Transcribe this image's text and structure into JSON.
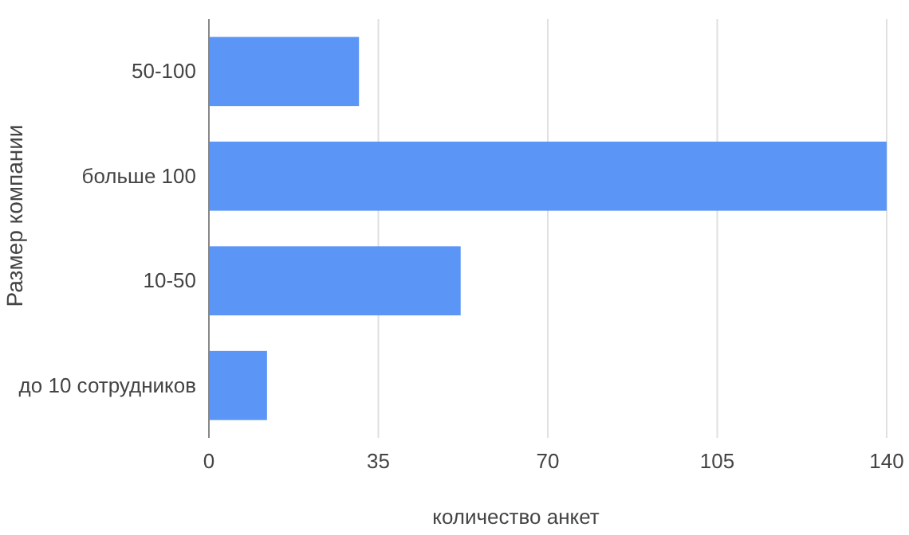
{
  "chart_data": {
    "type": "bar",
    "orientation": "horizontal",
    "xlabel": "количество анкет",
    "ylabel": "Размер компании",
    "categories": [
      "50-100",
      "больше 100",
      "10-50",
      "до 10 сотрудников"
    ],
    "values": [
      31,
      140,
      52,
      12
    ],
    "color": "#5b95f5",
    "xlim": [
      0,
      140
    ],
    "xticks": [
      0,
      35,
      70,
      105,
      140
    ],
    "grid": "x"
  }
}
